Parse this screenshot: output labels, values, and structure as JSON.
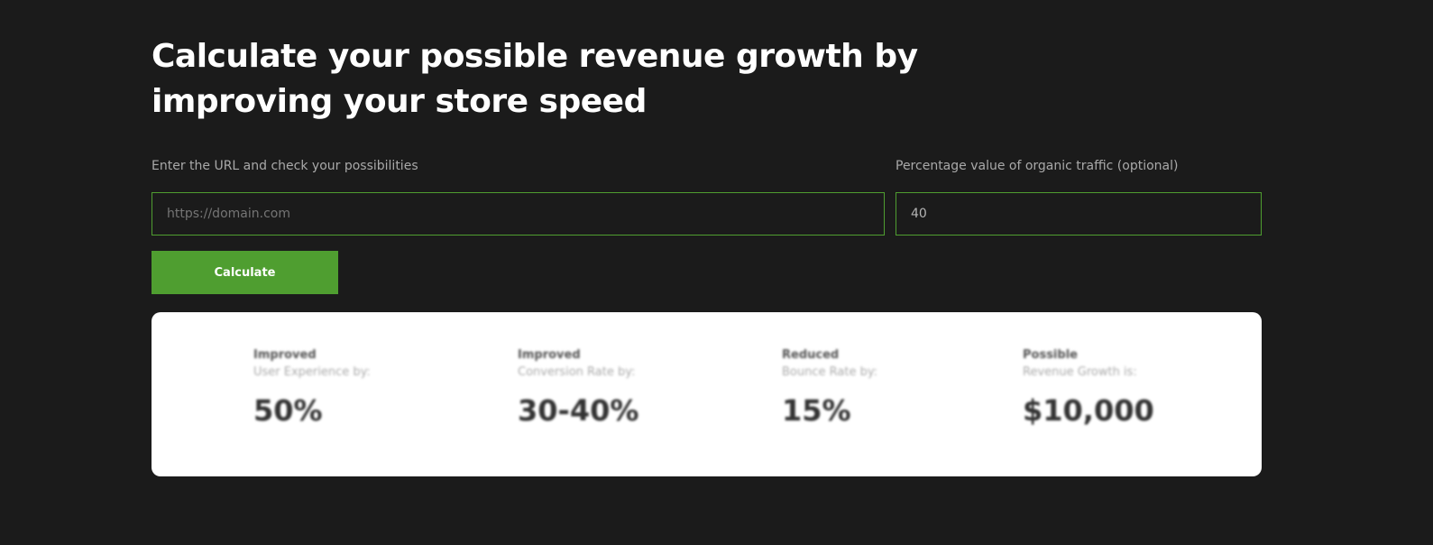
{
  "title": "Calculate your possible revenue growth by improving your store speed",
  "url_label": "Enter the URL and check your possibilities",
  "url_placeholder": "https://domain.com",
  "traffic_label": "Percentage value of organic traffic (optional)",
  "traffic_value": "40",
  "calculate_label": "Calculate",
  "accent": "#4f9e30",
  "stats": [
    {
      "l1": "Improved",
      "l2": "User Experience by:",
      "value": "50%"
    },
    {
      "l1": "Improved",
      "l2": "Conversion Rate by:",
      "value": "30-40%"
    },
    {
      "l1": "Reduced",
      "l2": "Bounce Rate by:",
      "value": "15%"
    },
    {
      "l1": "Possible",
      "l2": "Revenue Growth is:",
      "value": "$10,000"
    }
  ]
}
